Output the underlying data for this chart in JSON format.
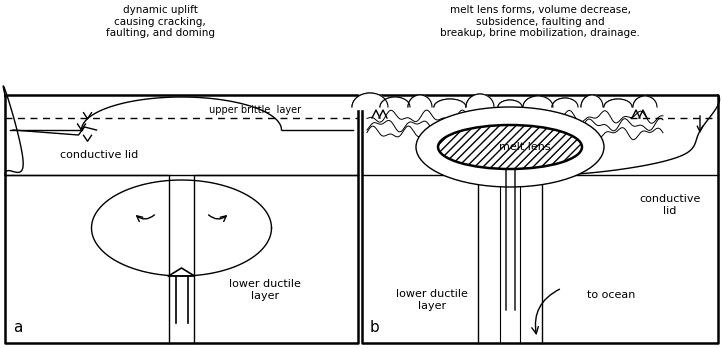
{
  "fig_width": 7.23,
  "fig_height": 3.48,
  "dpi": 100,
  "bg_color": "#ffffff",
  "black": "#000000",
  "panel_a_title": "dynamic uplift\ncausing cracking,\nfaulting, and doming",
  "panel_b_title": "melt lens forms, volume decrease,\nsubsidence, faulting and\nbreakup, brine mobilization, drainage.",
  "label_conductive_lid_a": "conductive lid",
  "label_lower_ductile_a": "lower ductile\nlayer",
  "label_upper_brittle": "upper brittle  layer",
  "label_melt_lens": "melt lens",
  "label_conductive_lid_b": "conductive\nlid",
  "label_lower_ductile_b": "lower ductile\nlayer",
  "label_to_ocean": "to ocean",
  "panel_a_letter": "a",
  "panel_b_letter": "b",
  "title_fontsize": 7.5,
  "label_fontsize": 8.0,
  "small_fontsize": 7.0
}
